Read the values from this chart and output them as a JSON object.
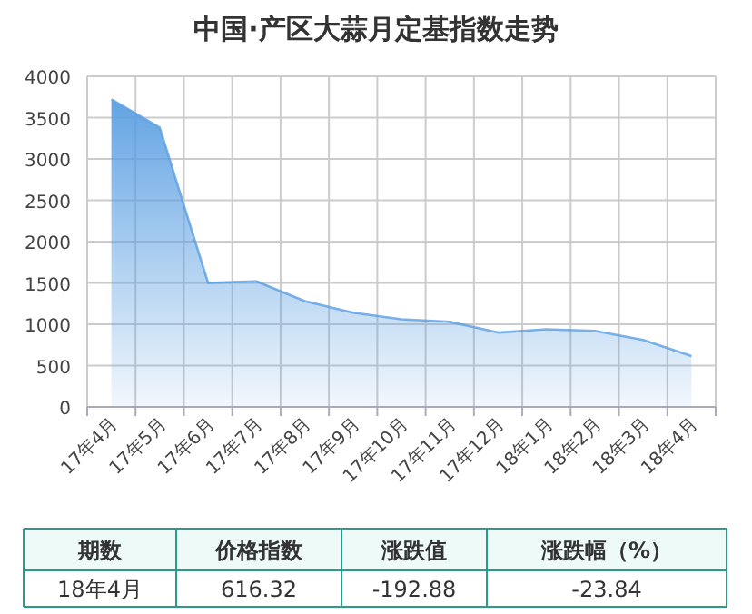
{
  "chart_data": {
    "type": "area",
    "title": "中国·产区大蒜月定基指数走势",
    "categories": [
      "17年4月",
      "17年5月",
      "17年6月",
      "17年7月",
      "17年8月",
      "17年9月",
      "17年10月",
      "17年11月",
      "17年12月",
      "18年1月",
      "18年2月",
      "18年3月",
      "18年4月"
    ],
    "values": [
      3720,
      3380,
      1500,
      1520,
      1280,
      1140,
      1060,
      1030,
      900,
      940,
      920,
      810,
      616.32
    ],
    "color": "#5b9fe2",
    "ylim": [
      0,
      4000
    ],
    "yticks": [
      0,
      500,
      1000,
      1500,
      2000,
      2500,
      3000,
      3500,
      4000
    ],
    "grid": true,
    "annotations": [
      "期数",
      "价格指数",
      "涨跌值",
      "涨跌幅（%）",
      "18年4月",
      "616.32",
      "-192.88",
      "-23.84"
    ]
  }
}
